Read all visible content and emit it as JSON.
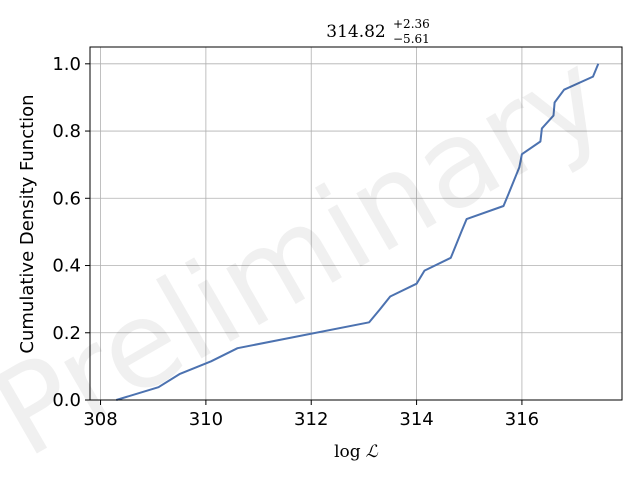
{
  "chart_data": {
    "type": "line",
    "title": {
      "base": "314.82",
      "sup": "+2.36",
      "sub": "−5.61"
    },
    "xlabel": {
      "prefix": "log",
      "symbol": "ℒ"
    },
    "ylabel": "Cumulative Density Function",
    "xlim": [
      307.8,
      317.9
    ],
    "ylim": [
      0.0,
      1.05
    ],
    "xticks": [
      308,
      310,
      312,
      314,
      316
    ],
    "xtick_labels": [
      "308",
      "310",
      "312",
      "314",
      "316"
    ],
    "yticks": [
      0.0,
      0.2,
      0.4,
      0.6,
      0.8,
      1.0
    ],
    "ytick_labels": [
      "0.0",
      "0.2",
      "0.4",
      "0.6",
      "0.8",
      "1.0"
    ],
    "grid": true,
    "watermark": "Preliminary",
    "line_color": "#4c72b0",
    "series": [
      {
        "x": [
          308.3,
          309.1,
          309.5,
          310.1,
          310.6,
          313.1,
          313.3,
          313.5,
          314.0,
          314.15,
          314.65,
          314.75,
          314.85,
          314.95,
          315.65,
          315.75,
          315.95,
          316.0,
          316.35,
          316.38,
          316.6,
          316.62,
          316.8,
          317.35,
          317.45
        ],
        "y": [
          0.0,
          0.038,
          0.077,
          0.115,
          0.154,
          0.231,
          0.269,
          0.308,
          0.346,
          0.385,
          0.423,
          0.462,
          0.5,
          0.538,
          0.577,
          0.615,
          0.692,
          0.731,
          0.769,
          0.808,
          0.846,
          0.885,
          0.923,
          0.962,
          1.0
        ]
      }
    ]
  }
}
